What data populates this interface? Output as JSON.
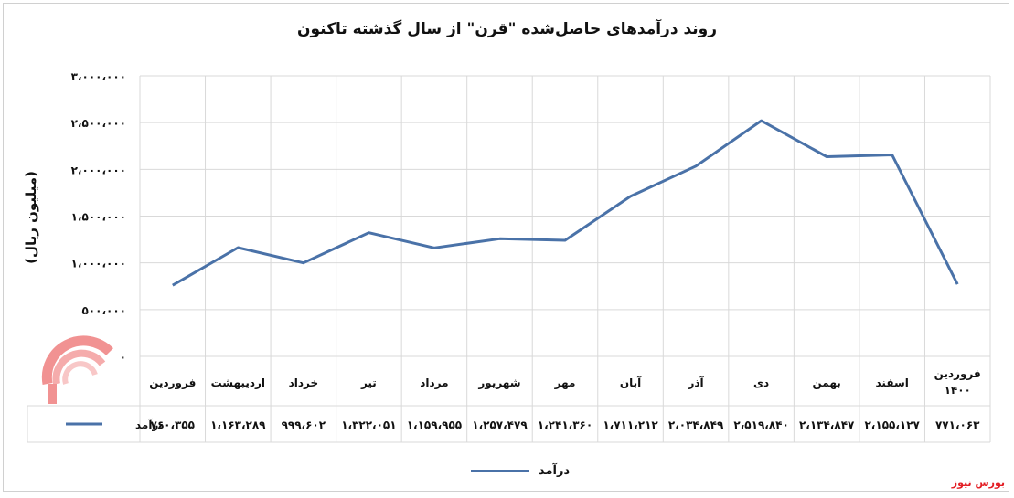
{
  "chart_data": {
    "type": "line",
    "title": "روند درآمدهای حاصل‌شده \"قرن\" از سال گذشته تاکنون",
    "ylabel": "(میلیون ریال)",
    "xlabel": "",
    "ylim": [
      0,
      3000000
    ],
    "y_ticks": [
      0,
      500000,
      1000000,
      1500000,
      2000000,
      2500000,
      3000000
    ],
    "y_tick_labels": [
      "۰",
      "۵۰۰،۰۰۰",
      "۱،۰۰۰،۰۰۰",
      "۱،۵۰۰،۰۰۰",
      "۲،۰۰۰،۰۰۰",
      "۲،۵۰۰،۰۰۰",
      "۳،۰۰۰،۰۰۰"
    ],
    "categories": [
      "فروردین",
      "اردیبهشت",
      "خرداد",
      "تیر",
      "مرداد",
      "شهریور",
      "مهر",
      "آبان",
      "آذر",
      "دی",
      "بهمن",
      "اسفند",
      "فروردین ۱۴۰۰"
    ],
    "series": [
      {
        "name": "درآمد",
        "values": [
          760355,
          1163289,
          999602,
          1322051,
          1159955,
          1257479,
          1241360,
          1711212,
          2034849,
          2519840,
          2134847,
          2155127,
          771063
        ],
        "value_labels": [
          "۷۶۰،۳۵۵",
          "۱،۱۶۳،۲۸۹",
          "۹۹۹،۶۰۲",
          "۱،۳۲۲،۰۵۱",
          "۱،۱۵۹،۹۵۵",
          "۱،۲۵۷،۴۷۹",
          "۱،۲۴۱،۳۶۰",
          "۱،۷۱۱،۲۱۲",
          "۲،۰۳۴،۸۴۹",
          "۲،۵۱۹،۸۴۰",
          "۲،۱۳۴،۸۴۷",
          "۲،۱۵۵،۱۲۷",
          "۷۷۱،۰۶۳"
        ]
      }
    ],
    "grid": true,
    "legend_position": "bottom",
    "data_table": true
  },
  "colors": {
    "line": "#4a72a8",
    "grid": "#d9d9d9",
    "source": "#e31e24"
  },
  "source_label": "بورس نیوز",
  "legend_label": "درآمد"
}
